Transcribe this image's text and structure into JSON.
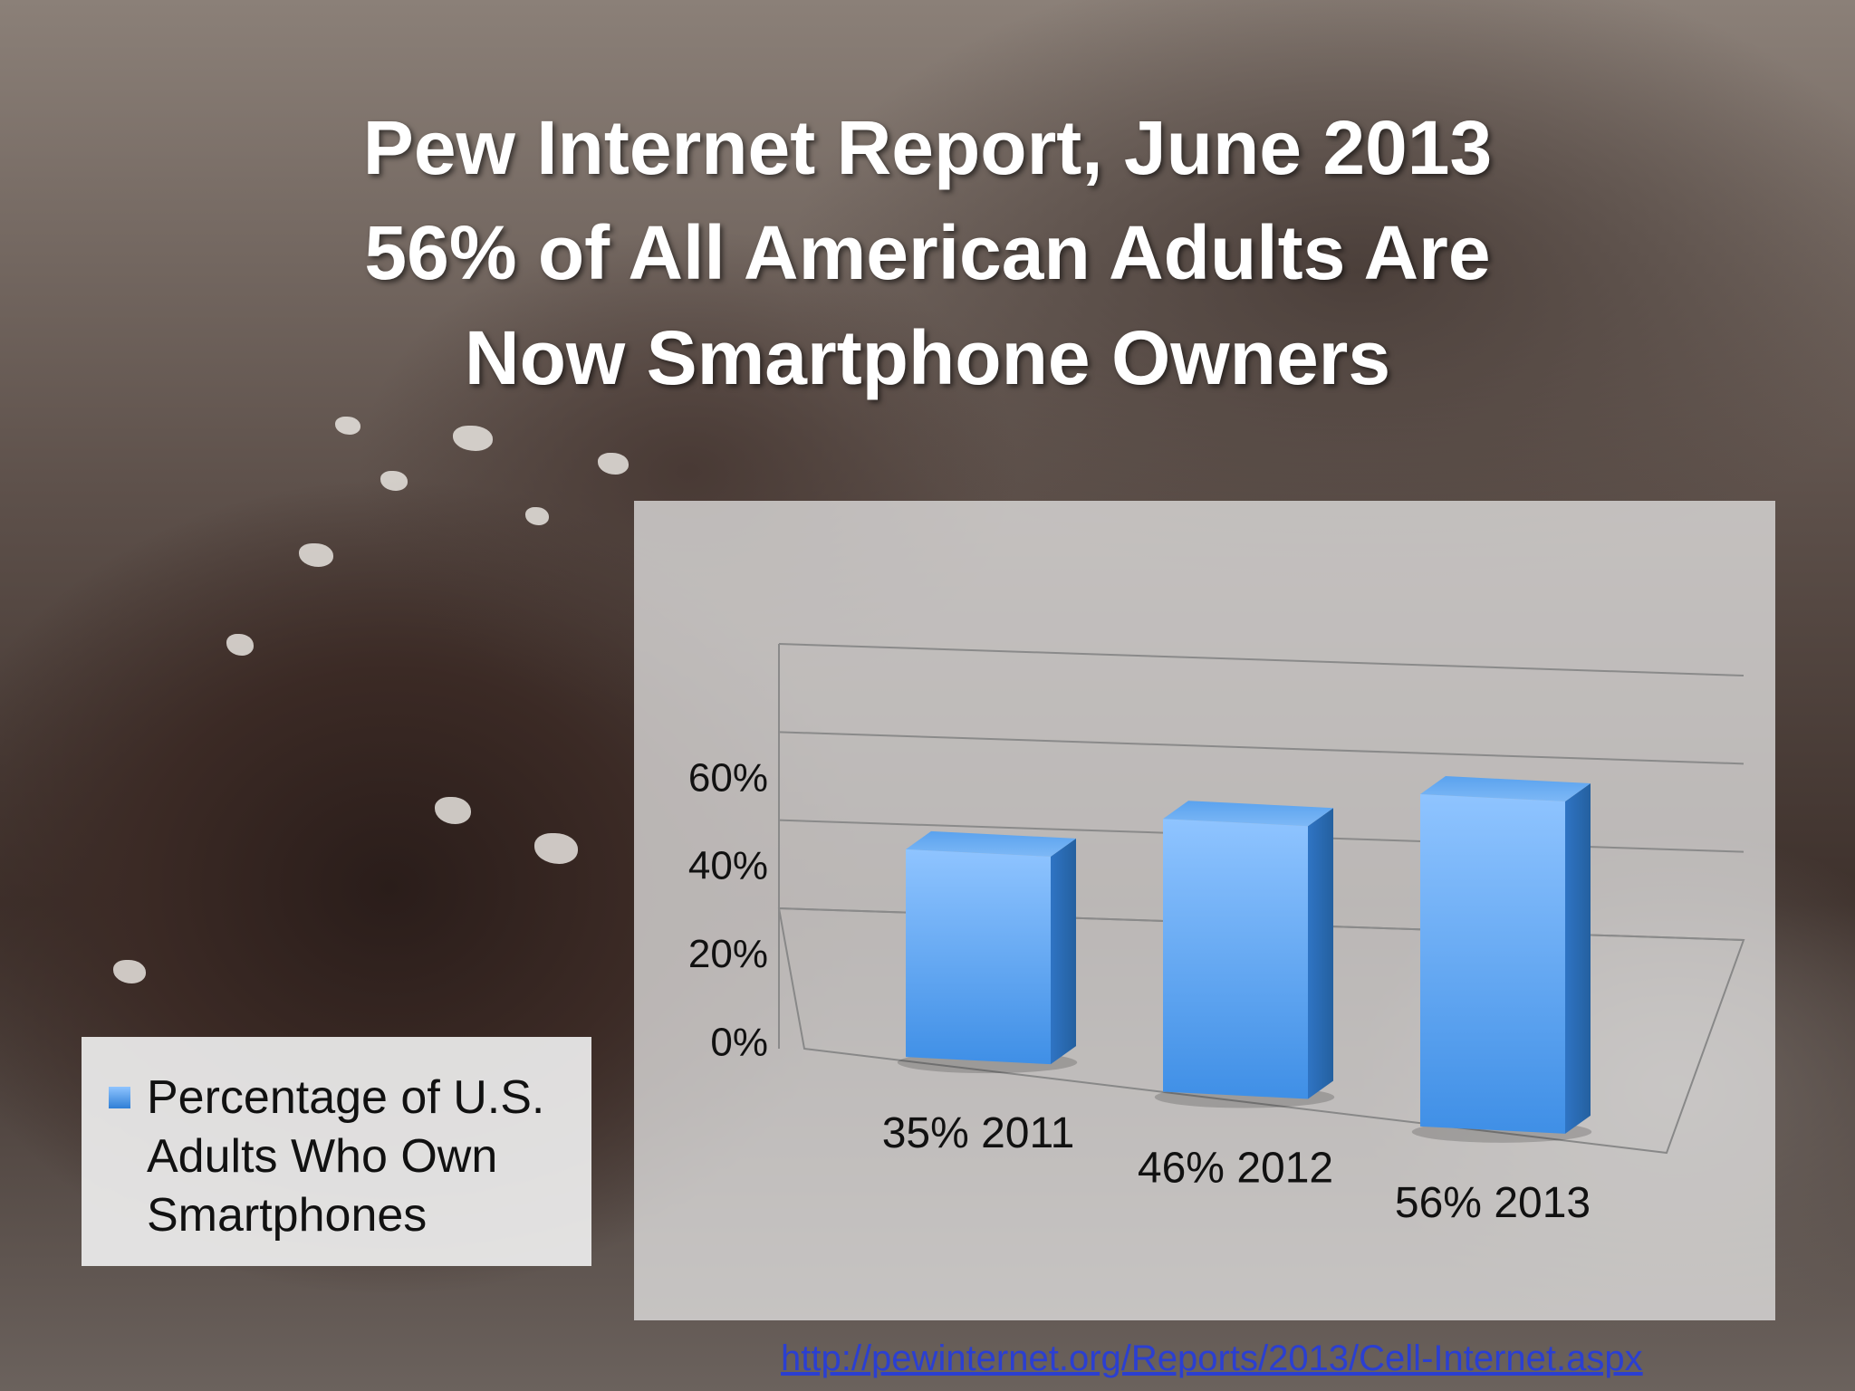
{
  "slide": {
    "title_lines": [
      "Pew Internet Report, June 2013",
      "56% of All American Adults Are",
      "Now Smartphone Owners"
    ],
    "source_url": "http://pewinternet.org/Reports/2013/Cell-Internet.aspx"
  },
  "colors": {
    "bar_top": "#8fc4ff",
    "bar_bottom": "#2f7fd6",
    "bar_side": "#2a6cb8",
    "title": "#ffffff",
    "link": "#2b3fd1"
  },
  "chart_data": {
    "type": "bar",
    "categories": [
      "35% 2011",
      "46% 2012",
      "56% 2013"
    ],
    "series": [
      {
        "name": "Percentage of U.S. Adults Who Own Smartphones",
        "values": [
          35,
          46,
          56
        ]
      }
    ],
    "yticks": [
      "0%",
      "20%",
      "40%",
      "60%"
    ],
    "ylim": [
      0,
      60
    ],
    "grid": true,
    "legend": "left",
    "style": "3d"
  }
}
